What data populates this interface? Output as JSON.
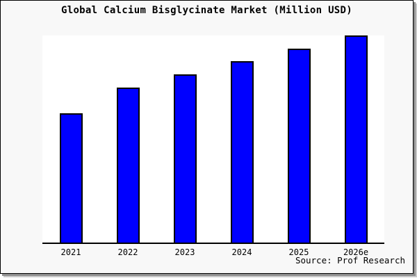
{
  "chart_data": {
    "type": "bar",
    "title": "Global Calcium Bisglycinate Market (Million USD)",
    "categories": [
      "2021",
      "2022",
      "2023",
      "2024",
      "2025",
      "2026e"
    ],
    "values": [
      62.5,
      74.9,
      81.3,
      87.6,
      93.6,
      100
    ],
    "ylim": [
      0,
      100
    ],
    "xlabel": "",
    "ylabel": "",
    "yaxis_labels_shown": false,
    "grid": false,
    "legend": null,
    "bar_color": "#0000ff",
    "bar_border_color": "#000000",
    "plot_background": "#ffffff",
    "page_background": "#f8f8f8",
    "source_note": "Source: Prof Research"
  }
}
